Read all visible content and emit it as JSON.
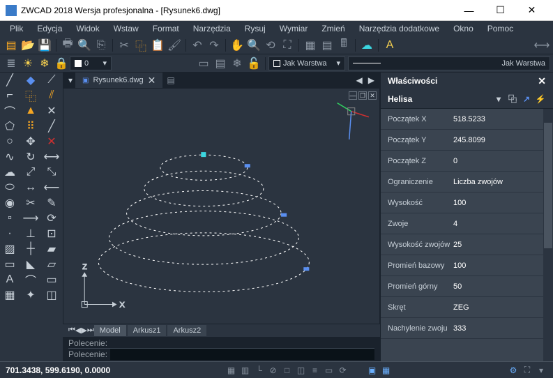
{
  "window": {
    "title": "ZWCAD 2018 Wersja profesjonalna - [Rysunek6.dwg]",
    "min": "—",
    "max": "☐",
    "close": "✕"
  },
  "menu": {
    "items": [
      "Plik",
      "Edycja",
      "Widok",
      "Wstaw",
      "Format",
      "Narzędzia",
      "Rysuj",
      "Wymiar",
      "Zmień",
      "Narzędzia dodatkowe",
      "Okno",
      "Pomoc"
    ]
  },
  "toolbar1": {
    "layer_value": "0"
  },
  "toolbar2": {
    "linetype_label": "Jak Warstwa",
    "lineweight_label": "Jak Warstwa"
  },
  "document_tab": {
    "filename": "Rysunek6.dwg",
    "close": "✕"
  },
  "bottom_tabs": {
    "items": [
      "Model",
      "Arkusz1",
      "Arkusz2"
    ]
  },
  "command": {
    "prompt1": "Polecenie:",
    "prompt2": "Polecenie:"
  },
  "properties": {
    "panel_title": "Właściwości",
    "object_type": "Helisa",
    "rows": [
      {
        "label": "Początek X",
        "value": "518.5233"
      },
      {
        "label": "Początek Y",
        "value": "245.8099"
      },
      {
        "label": "Początek Z",
        "value": "0"
      },
      {
        "label": "Ograniczenie",
        "value": "Liczba zwojów"
      },
      {
        "label": "Wysokość",
        "value": "100"
      },
      {
        "label": "Zwoje",
        "value": "4"
      },
      {
        "label": "Wysokość zwojów",
        "value": "25"
      },
      {
        "label": "Promień bazowy",
        "value": "100"
      },
      {
        "label": "Promień górny",
        "value": "50"
      },
      {
        "label": "Skręt",
        "value": "ZEG"
      },
      {
        "label": "Nachylenie zwoju",
        "value": "333"
      }
    ]
  },
  "status": {
    "coords": "701.3438, 599.6190, 0.0000"
  },
  "canvas": {
    "axis_labels": {
      "x": "X",
      "z": "Z"
    },
    "helix_color": "#ffffff",
    "marker_color": "#5a8ff0",
    "grip_color": "#3bd6e0"
  }
}
